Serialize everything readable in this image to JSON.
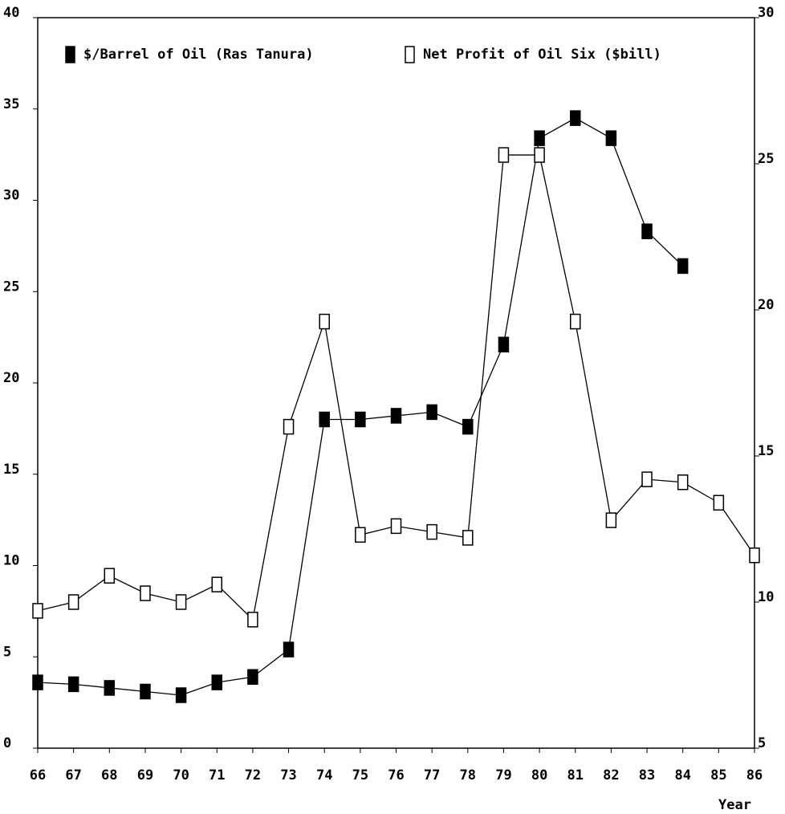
{
  "chart_data": {
    "type": "line",
    "x": [
      66,
      67,
      68,
      69,
      70,
      71,
      72,
      73,
      74,
      75,
      76,
      77,
      78,
      79,
      80,
      81,
      82,
      83,
      84,
      85,
      86
    ],
    "xticks": [
      66,
      67,
      68,
      69,
      70,
      71,
      72,
      73,
      74,
      75,
      76,
      77,
      78,
      79,
      80,
      81,
      82,
      83,
      84,
      85,
      86
    ],
    "xlim": [
      66,
      86
    ],
    "xlabel": "Year",
    "ylim": [
      0,
      40
    ],
    "yticks": [
      0,
      5,
      10,
      15,
      20,
      25,
      30,
      35,
      40
    ],
    "y2lim": [
      5,
      30
    ],
    "y2ticks": [
      5,
      10,
      15,
      20,
      25,
      30
    ],
    "legend": "top",
    "series": [
      {
        "name": "$/Barrel of Oil (Ras Tanura)",
        "color": "#000000",
        "marker": "filled",
        "values": [
          3.6,
          3.5,
          3.3,
          3.1,
          2.9,
          3.6,
          3.9,
          5.4,
          18.0,
          18.0,
          18.2,
          18.4,
          17.6,
          22.1,
          33.4,
          34.5,
          33.4,
          28.3,
          26.4,
          null,
          null
        ]
      },
      {
        "name": "Net Profit of Oil Six ($bill)",
        "color": "#000000",
        "marker": "open",
        "axis": "y2",
        "values": [
          9.7,
          10.0,
          10.9,
          10.3,
          10.0,
          10.6,
          9.4,
          16.0,
          19.6,
          12.3,
          12.6,
          12.4,
          12.2,
          25.3,
          25.3,
          19.6,
          12.8,
          14.2,
          14.1,
          13.4,
          11.6
        ]
      }
    ]
  }
}
